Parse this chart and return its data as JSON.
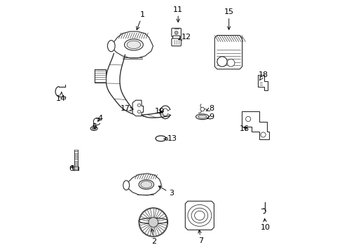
{
  "background_color": "#ffffff",
  "line_color": "#2a2a2a",
  "label_color": "#000000",
  "figsize": [
    4.89,
    3.6
  ],
  "dpi": 100,
  "label_positions": {
    "1": [
      0.385,
      0.945,
      0.358,
      0.875
    ],
    "2": [
      0.43,
      0.038,
      0.42,
      0.1
    ],
    "3": [
      0.5,
      0.23,
      0.44,
      0.265
    ],
    "4": [
      0.215,
      0.53,
      0.2,
      0.51
    ],
    "5": [
      0.193,
      0.497,
      0.193,
      0.487
    ],
    "6": [
      0.1,
      0.33,
      0.115,
      0.35
    ],
    "7": [
      0.618,
      0.04,
      0.61,
      0.095
    ],
    "8": [
      0.66,
      0.57,
      0.638,
      0.56
    ],
    "9": [
      0.66,
      0.535,
      0.64,
      0.53
    ],
    "10": [
      0.875,
      0.095,
      0.872,
      0.14
    ],
    "11": [
      0.527,
      0.965,
      0.527,
      0.905
    ],
    "12": [
      0.56,
      0.855,
      0.527,
      0.845
    ],
    "13": [
      0.503,
      0.45,
      0.468,
      0.448
    ],
    "14": [
      0.06,
      0.61,
      0.062,
      0.645
    ],
    "15": [
      0.73,
      0.955,
      0.73,
      0.875
    ],
    "16": [
      0.793,
      0.488,
      0.812,
      0.5
    ],
    "17": [
      0.315,
      0.57,
      0.35,
      0.567
    ],
    "18": [
      0.868,
      0.705,
      0.852,
      0.682
    ],
    "19": [
      0.453,
      0.558,
      0.472,
      0.555
    ]
  }
}
